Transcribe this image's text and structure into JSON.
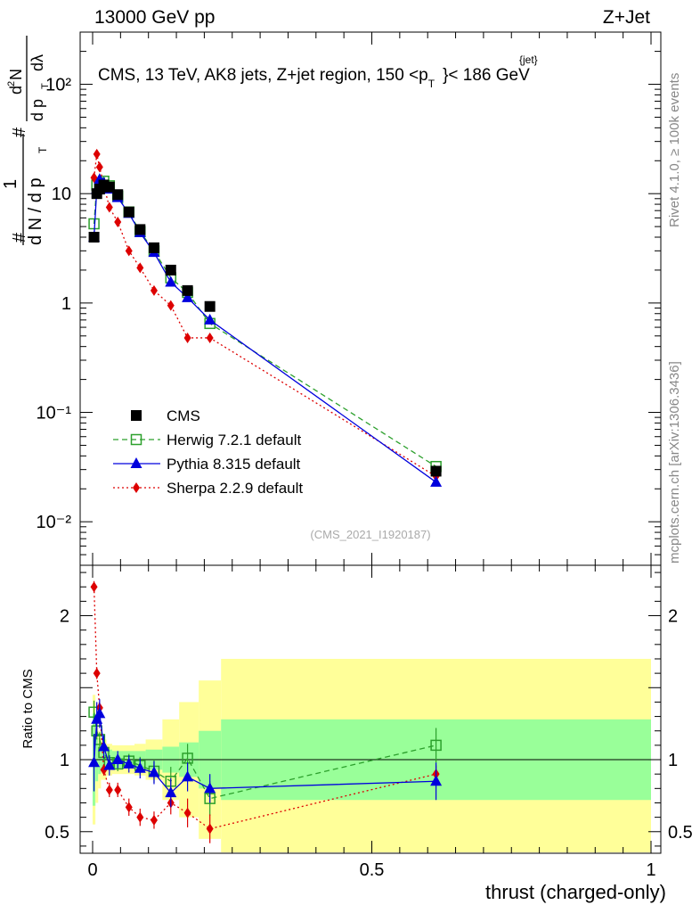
{
  "header": {
    "left": "13000 GeV pp",
    "right": "Z+Jet"
  },
  "title": {
    "main": "CMS, 13 TeV, AK8 jets, Z+jet region, 150 <p",
    "sup": "{jet}",
    "sub": "T",
    "tail": "}< 186 GeV"
  },
  "side_labels": {
    "rivet": "Rivet 4.1.0, ≥ 100k events",
    "mcplots": "mcplots.cern.ch [arXiv:1306.3436]"
  },
  "analysis_id": "(CMS_2021_I1920187)",
  "ylabel_top": {
    "hash1": "#",
    "one": "1",
    "dN": "d N / d p",
    "T1": "T",
    "hash2": "#",
    "d2N": "d",
    "two": "2",
    "N": "N",
    "dpT": "d p",
    "T2": "T",
    "dlambda": "dλ"
  },
  "ylabel_bottom": "Ratio to CMS",
  "xlabel": "thrust (charged-only)",
  "legend": [
    {
      "name": "CMS",
      "color": "#000000",
      "marker": "square"
    },
    {
      "name": "Herwig 7.2.1 default",
      "color": "#2ca02c",
      "marker": "open-square"
    },
    {
      "name": "Pythia 8.315 default",
      "color": "#0000dd",
      "marker": "triangle"
    },
    {
      "name": "Sherpa 2.2.9 default",
      "color": "#dd0000",
      "marker": "diamond"
    }
  ],
  "chart_data": {
    "type": "line",
    "main": {
      "yscale": "log",
      "ylim": [
        0.004,
        300
      ],
      "ytick_labels": [
        "10⁻²",
        "10⁻¹",
        "1",
        "10",
        "10²"
      ],
      "ytick_values": [
        0.01,
        0.1,
        1,
        10,
        100
      ]
    },
    "ratio": {
      "ylim": [
        0.35,
        2.35
      ],
      "ytick_values": [
        0.5,
        1,
        2
      ],
      "ytick_labels": [
        "0.5",
        "1",
        "2"
      ]
    },
    "xlim": [
      -0.01,
      1.0
    ],
    "xtick_values": [
      0,
      0.5,
      1
    ],
    "xtick_labels": [
      "0",
      "0.5",
      "1"
    ],
    "x": [
      0.0025,
      0.0075,
      0.0125,
      0.02,
      0.03,
      0.045,
      0.065,
      0.085,
      0.11,
      0.14,
      0.17,
      0.21,
      0.615
    ],
    "series": [
      {
        "name": "CMS",
        "values": [
          4.0,
          10.0,
          11.0,
          12.0,
          11.5,
          9.8,
          6.8,
          4.7,
          3.2,
          2.0,
          1.3,
          0.93,
          0.029
        ]
      },
      {
        "name": "Herwig 7.2.1 default",
        "values": [
          5.3,
          12.0,
          12.5,
          13.0,
          11.8,
          9.5,
          6.8,
          4.5,
          3.0,
          1.7,
          1.25,
          0.65,
          0.032
        ],
        "ratio": [
          1.33,
          1.2,
          1.14,
          1.05,
          0.98,
          0.97,
          0.99,
          0.96,
          0.92,
          0.85,
          1.01,
          0.73,
          1.1
        ],
        "ratio_err": [
          0.08,
          0.06,
          0.05,
          0.05,
          0.05,
          0.05,
          0.05,
          0.06,
          0.08,
          0.1,
          0.1,
          0.12,
          0.12
        ]
      },
      {
        "name": "Pythia 8.315 default",
        "values": [
          4.0,
          11.0,
          13.5,
          12.5,
          11.0,
          9.2,
          6.6,
          4.4,
          2.9,
          1.55,
          1.12,
          0.7,
          0.023
        ],
        "ratio": [
          0.98,
          1.28,
          1.32,
          1.09,
          0.96,
          1.0,
          0.97,
          0.94,
          0.91,
          0.77,
          0.88,
          0.8,
          0.85
        ],
        "ratio_err": [
          0.2,
          0.12,
          0.1,
          0.08,
          0.07,
          0.06,
          0.06,
          0.07,
          0.08,
          0.1,
          0.1,
          0.1,
          0.13
        ]
      },
      {
        "name": "Sherpa 2.2.9 default",
        "values": [
          14.0,
          23.0,
          17.5,
          12.0,
          7.5,
          5.5,
          3.0,
          2.1,
          1.3,
          0.95,
          0.48,
          0.48,
          0.026
        ],
        "ratio": [
          2.2,
          1.6,
          1.36,
          0.93,
          0.79,
          0.79,
          0.67,
          0.6,
          0.58,
          0.7,
          0.63,
          0.52,
          0.9
        ],
        "ratio_err": [
          0.04,
          0.04,
          0.04,
          0.04,
          0.05,
          0.05,
          0.06,
          0.06,
          0.06,
          0.08,
          0.1,
          0.1,
          0.06
        ]
      }
    ],
    "cms_uncertainty_bands": {
      "edges": [
        0.0,
        0.005,
        0.01,
        0.015,
        0.025,
        0.035,
        0.055,
        0.075,
        0.095,
        0.125,
        0.155,
        0.19,
        0.23,
        1.0
      ],
      "inner_half_width": [
        0.32,
        0.15,
        0.1,
        0.08,
        0.07,
        0.06,
        0.06,
        0.06,
        0.07,
        0.09,
        0.12,
        0.2,
        0.28
      ],
      "outer_half_width": [
        0.45,
        0.3,
        0.2,
        0.14,
        0.11,
        0.1,
        0.1,
        0.11,
        0.14,
        0.28,
        0.4,
        0.55,
        0.7
      ]
    }
  }
}
